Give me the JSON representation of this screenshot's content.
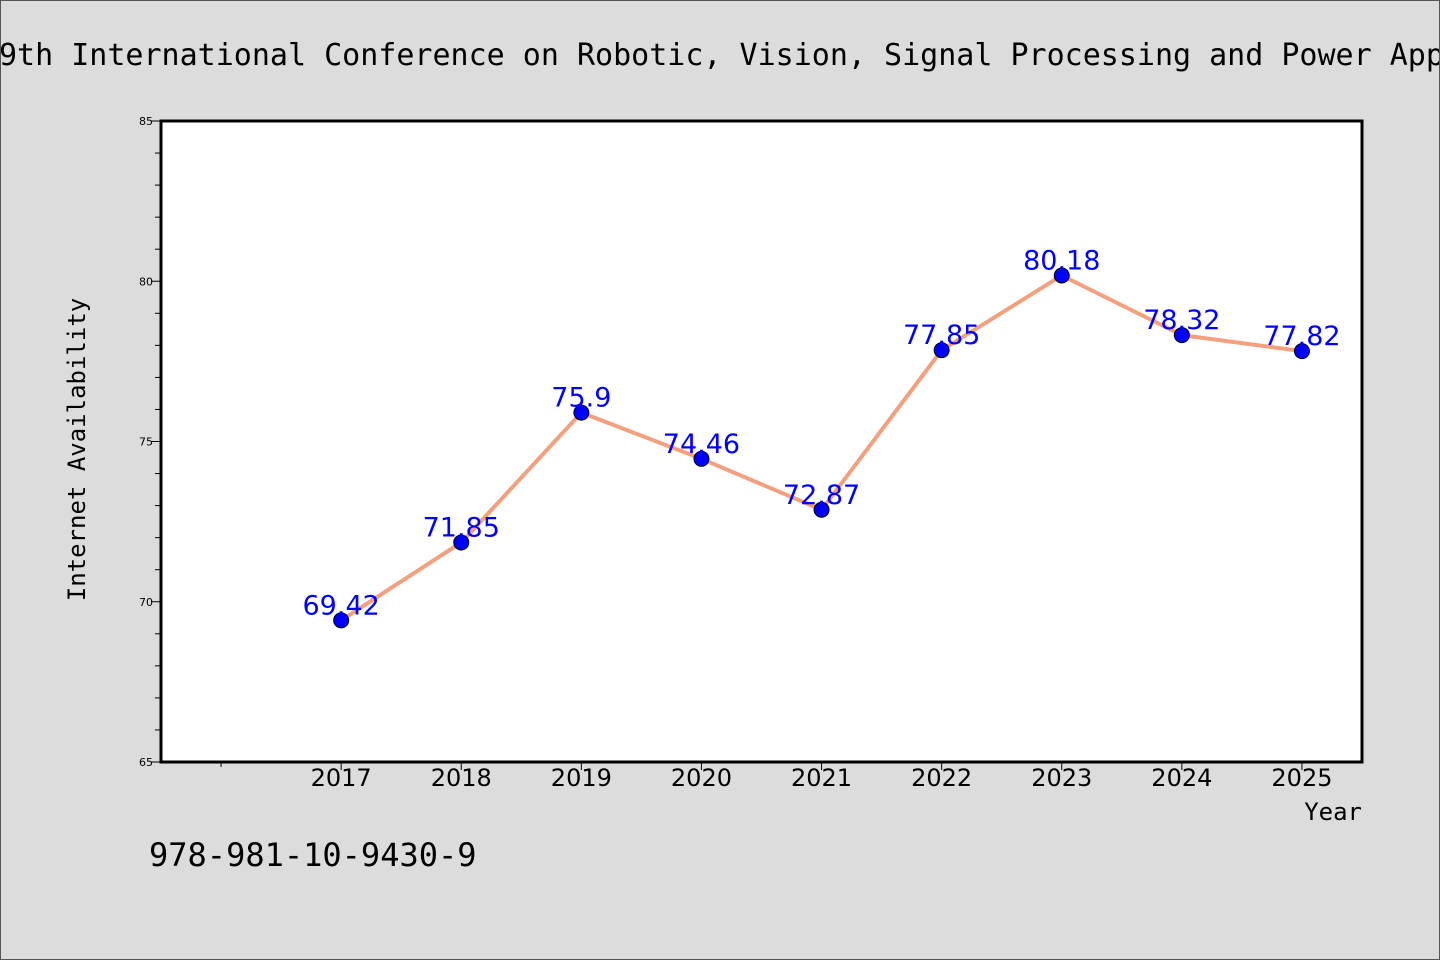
{
  "page": {
    "title": "9th International Conference on Robotic, Vision, Signal Processing and Power App",
    "footer_code": "978-981-10-9430-9"
  },
  "colors": {
    "background": "#dcdcdc",
    "plot_background": "#ffffff",
    "line": "#f4a07e",
    "marker": "#0000ff",
    "data_label": "#0000ff"
  },
  "chart_data": {
    "type": "line",
    "xlabel": "Year",
    "ylabel": "Internet Availability",
    "ylim": [
      65,
      85
    ],
    "yticks": [
      65,
      70,
      75,
      80,
      85
    ],
    "y_minor_step": 1,
    "xlim": [
      2015.5,
      2025.5
    ],
    "x": [
      2017,
      2018,
      2019,
      2020,
      2021,
      2022,
      2023,
      2024,
      2025
    ],
    "x_minor_ticks": [
      2016
    ],
    "series": [
      {
        "values": [
          69.42,
          71.85,
          75.9,
          74.46,
          72.87,
          77.85,
          80.18,
          78.32,
          77.82
        ],
        "labels": [
          "69.42",
          "71.85",
          "75.9",
          "74.46",
          "72.87",
          "77.85",
          "80.18",
          "78.32",
          "77.82"
        ]
      }
    ],
    "grid": false,
    "legend": "none"
  }
}
